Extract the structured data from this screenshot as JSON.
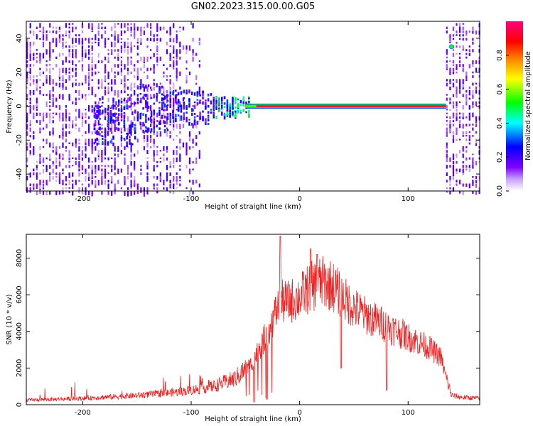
{
  "title": "GN02.2023.315.00.00.G05",
  "chart_data": [
    {
      "type": "heatmap",
      "xlabel": "Height of straight line (km)",
      "ylabel": "Frequency (Hz)",
      "xlim": [
        -252,
        166
      ],
      "ylim": [
        -50,
        50
      ],
      "xticks": [
        -200,
        -100,
        0,
        100
      ],
      "xtick_labels": [
        "-200",
        "-100",
        "0",
        "100"
      ],
      "yticks": [
        -40,
        -20,
        0,
        20,
        40
      ],
      "ytick_labels": [
        "-40",
        "-20",
        "0",
        "20",
        "40"
      ],
      "colorbar": {
        "label": "Normalized spectral amplitude",
        "range": [
          0,
          1
        ],
        "ticks": [
          0.0,
          0.2,
          0.4,
          0.6,
          0.8
        ],
        "tick_labels": [
          "0.0",
          "0.2",
          "0.4",
          "0.6",
          "0.8"
        ],
        "colors": [
          "#ffffff",
          "#c8a0ff",
          "#7f00ff",
          "#0000ff",
          "#00ffff",
          "#00ff00",
          "#ffff00",
          "#ff8000",
          "#ff0000",
          "#ff0080"
        ]
      },
      "features": {
        "noise_band_x": [
          -252,
          -100
        ],
        "signal_line_x": [
          -50,
          135
        ],
        "signal_line_frequency": 0,
        "right_noise_band_x": [
          135,
          166
        ],
        "spot": {
          "x": 140,
          "y": 35
        }
      }
    },
    {
      "type": "line",
      "xlabel": "Height of straight line (km)",
      "ylabel": "SNR (10 * v/v)",
      "xlim": [
        -252,
        166
      ],
      "ylim": [
        0,
        9300
      ],
      "xticks": [
        -200,
        -100,
        0,
        100
      ],
      "xtick_labels": [
        "-200",
        "-100",
        "0",
        "100"
      ],
      "yticks": [
        0,
        2000,
        4000,
        6000,
        8000
      ],
      "ytick_labels": [
        "0",
        "2000",
        "4000",
        "6000",
        "8000"
      ],
      "color": "#ee2222",
      "envelope": {
        "x": [
          -252,
          -200,
          -150,
          -110,
          -80,
          -60,
          -45,
          -35,
          -25,
          -18,
          -10,
          0,
          10,
          20,
          30,
          40,
          50,
          60,
          70,
          80,
          90,
          100,
          110,
          120,
          130,
          135,
          140,
          150,
          166
        ],
        "y": [
          250,
          350,
          500,
          700,
          1000,
          1400,
          2200,
          3300,
          4600,
          5600,
          5600,
          5900,
          6400,
          6700,
          6500,
          5800,
          5300,
          4900,
          4600,
          4300,
          4000,
          3700,
          3400,
          3100,
          2600,
          1500,
          500,
          400,
          350
        ]
      },
      "peaks": [
        {
          "x": -18,
          "y": 9200
        },
        {
          "x": 10,
          "y": 8500
        },
        {
          "x": 16,
          "y": 8200
        }
      ],
      "dips": [
        {
          "x": -30,
          "y": 300
        },
        {
          "x": -42,
          "y": 150
        },
        {
          "x": 38,
          "y": 2000
        },
        {
          "x": 80,
          "y": 800
        }
      ]
    }
  ]
}
